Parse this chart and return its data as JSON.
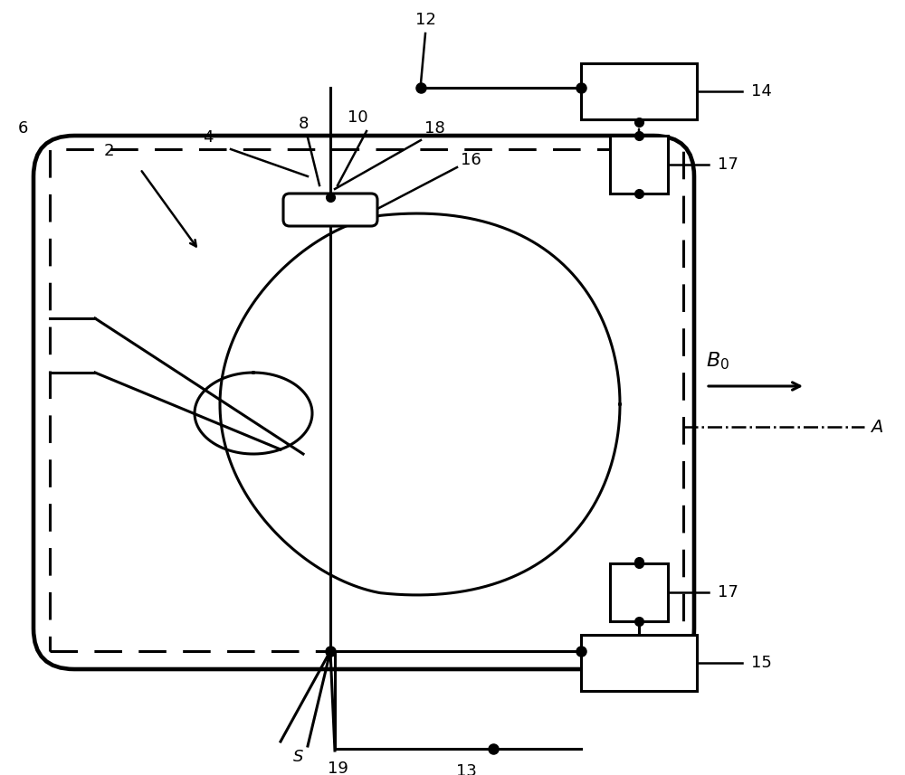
{
  "bg_color": "#ffffff",
  "line_color": "#000000",
  "fig_width": 10.0,
  "fig_height": 8.57,
  "dpi": 100
}
